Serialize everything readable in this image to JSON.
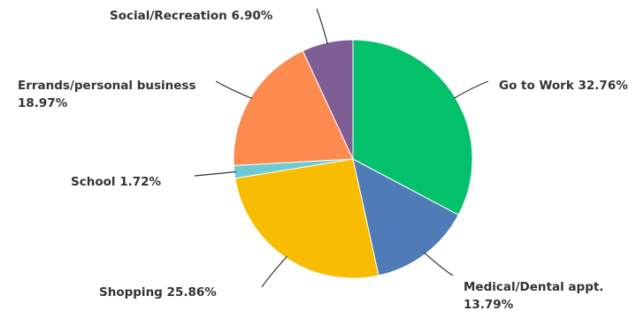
{
  "chart_data": {
    "type": "pie",
    "title": "",
    "start_angle_deg": 0,
    "direction": "clockwise",
    "slices": [
      {
        "label": "Go to Work",
        "value": 32.76,
        "display": "32.76%",
        "color": "#03c16b"
      },
      {
        "label": "Medical/Dental appt.",
        "value": 13.79,
        "display": "13.79%",
        "color": "#4f7bb7"
      },
      {
        "label": "Shopping",
        "value": 25.86,
        "display": "25.86%",
        "color": "#f8bd00"
      },
      {
        "label": "School",
        "value": 1.72,
        "display": "1.72%",
        "color": "#6fcad4"
      },
      {
        "label": "Errands/personal business",
        "value": 18.97,
        "display": "18.97%",
        "color": "#fd8b4f"
      },
      {
        "label": "Social/Recreation",
        "value": 6.9,
        "display": "6.90%",
        "color": "#7e5e94"
      }
    ]
  }
}
